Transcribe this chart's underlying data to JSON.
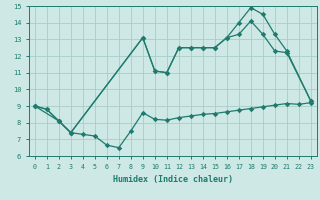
{
  "xlabel": "Humidex (Indice chaleur)",
  "xlim": [
    -0.5,
    23.5
  ],
  "ylim": [
    6,
    15
  ],
  "yticks": [
    6,
    7,
    8,
    9,
    10,
    11,
    12,
    13,
    14,
    15
  ],
  "xticks": [
    0,
    1,
    2,
    3,
    4,
    5,
    6,
    7,
    8,
    9,
    10,
    11,
    12,
    13,
    14,
    15,
    16,
    17,
    18,
    19,
    20,
    21,
    22,
    23
  ],
  "bg_color": "#cde8e5",
  "grid_color": "#a8cdc9",
  "line_color": "#1e7b6e",
  "line1_x": [
    0,
    1,
    2,
    3,
    4,
    5,
    6,
    7,
    8,
    9,
    10,
    11,
    12,
    13,
    14,
    15,
    16,
    17,
    18,
    19,
    20,
    21,
    22,
    23
  ],
  "line1_y": [
    9.0,
    8.8,
    8.1,
    7.4,
    7.3,
    7.2,
    6.65,
    6.5,
    7.5,
    8.6,
    8.2,
    8.15,
    8.3,
    8.4,
    8.5,
    8.55,
    8.65,
    8.75,
    8.85,
    8.95,
    9.05,
    9.15,
    9.1,
    9.2
  ],
  "line2_x": [
    0,
    1,
    2,
    3,
    9,
    10,
    11,
    12,
    13,
    14,
    15,
    16,
    17,
    18,
    19,
    20,
    21,
    23
  ],
  "line2_y": [
    9.0,
    8.8,
    8.1,
    7.4,
    13.1,
    11.1,
    11.0,
    12.5,
    12.5,
    12.5,
    12.5,
    13.1,
    13.3,
    14.1,
    13.3,
    12.3,
    12.2,
    9.3
  ],
  "line3_x": [
    0,
    2,
    3,
    9,
    10,
    11,
    12,
    13,
    14,
    15,
    16,
    17,
    18,
    19,
    20,
    21,
    23
  ],
  "line3_y": [
    9.0,
    8.1,
    7.4,
    13.1,
    11.1,
    11.0,
    12.5,
    12.5,
    12.5,
    12.5,
    13.1,
    14.0,
    14.9,
    14.5,
    13.3,
    12.3,
    9.3
  ]
}
